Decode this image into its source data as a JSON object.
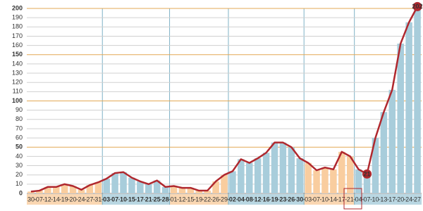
{
  "chart_data": {
    "type": "bar",
    "categories": [
      "30",
      "07",
      "12",
      "14",
      "19",
      "20",
      "24",
      "27",
      "31",
      "03",
      "07",
      "10",
      "15",
      "17",
      "21",
      "25",
      "28",
      "01",
      "12",
      "15",
      "19",
      "22",
      "26",
      "29",
      "02",
      "04",
      "08",
      "12",
      "16",
      "19",
      "23",
      "26",
      "30",
      "03",
      "07",
      "10",
      "14",
      "17",
      "21",
      "04",
      "07",
      "10",
      "13",
      "17",
      "20",
      "24",
      "27"
    ],
    "values": [
      2,
      3,
      7,
      7,
      10,
      8,
      4,
      9,
      12,
      16,
      22,
      23,
      17,
      13,
      10,
      14,
      7,
      8,
      6,
      6,
      3,
      3,
      13,
      20,
      24,
      37,
      33,
      38,
      44,
      55,
      55,
      50,
      38,
      33,
      25,
      28,
      26,
      45,
      40,
      26,
      21,
      60,
      88,
      112,
      162,
      185,
      202
    ],
    "value_labels": [
      null,
      null,
      null,
      null,
      null,
      null,
      null,
      null,
      null,
      null,
      null,
      null,
      null,
      null,
      null,
      null,
      null,
      null,
      null,
      null,
      null,
      null,
      null,
      null,
      null,
      null,
      null,
      null,
      null,
      null,
      null,
      null,
      null,
      null,
      null,
      null,
      null,
      null,
      null,
      null,
      "21",
      null,
      null,
      null,
      null,
      null,
      "202"
    ],
    "groups": [
      {
        "size": 9,
        "color": "#f9cd9f",
        "bold": false
      },
      {
        "size": 8,
        "color": "#a8cddb",
        "bold": true
      },
      {
        "size": 7,
        "color": "#f9cd9f",
        "bold": false
      },
      {
        "size": 9,
        "color": "#a8cddb",
        "bold": true
      },
      {
        "size": 6,
        "color": "#f9cd9f",
        "bold": false
      },
      {
        "size": 8,
        "color": "#a8cddb",
        "bold": false
      }
    ],
    "line_color": "#b0282e",
    "ylim": [
      0,
      200
    ],
    "yticks": [
      0,
      10,
      20,
      30,
      40,
      50,
      60,
      70,
      80,
      90,
      100,
      110,
      120,
      130,
      140,
      150,
      160,
      170,
      180,
      190,
      200
    ],
    "grid": true
  }
}
